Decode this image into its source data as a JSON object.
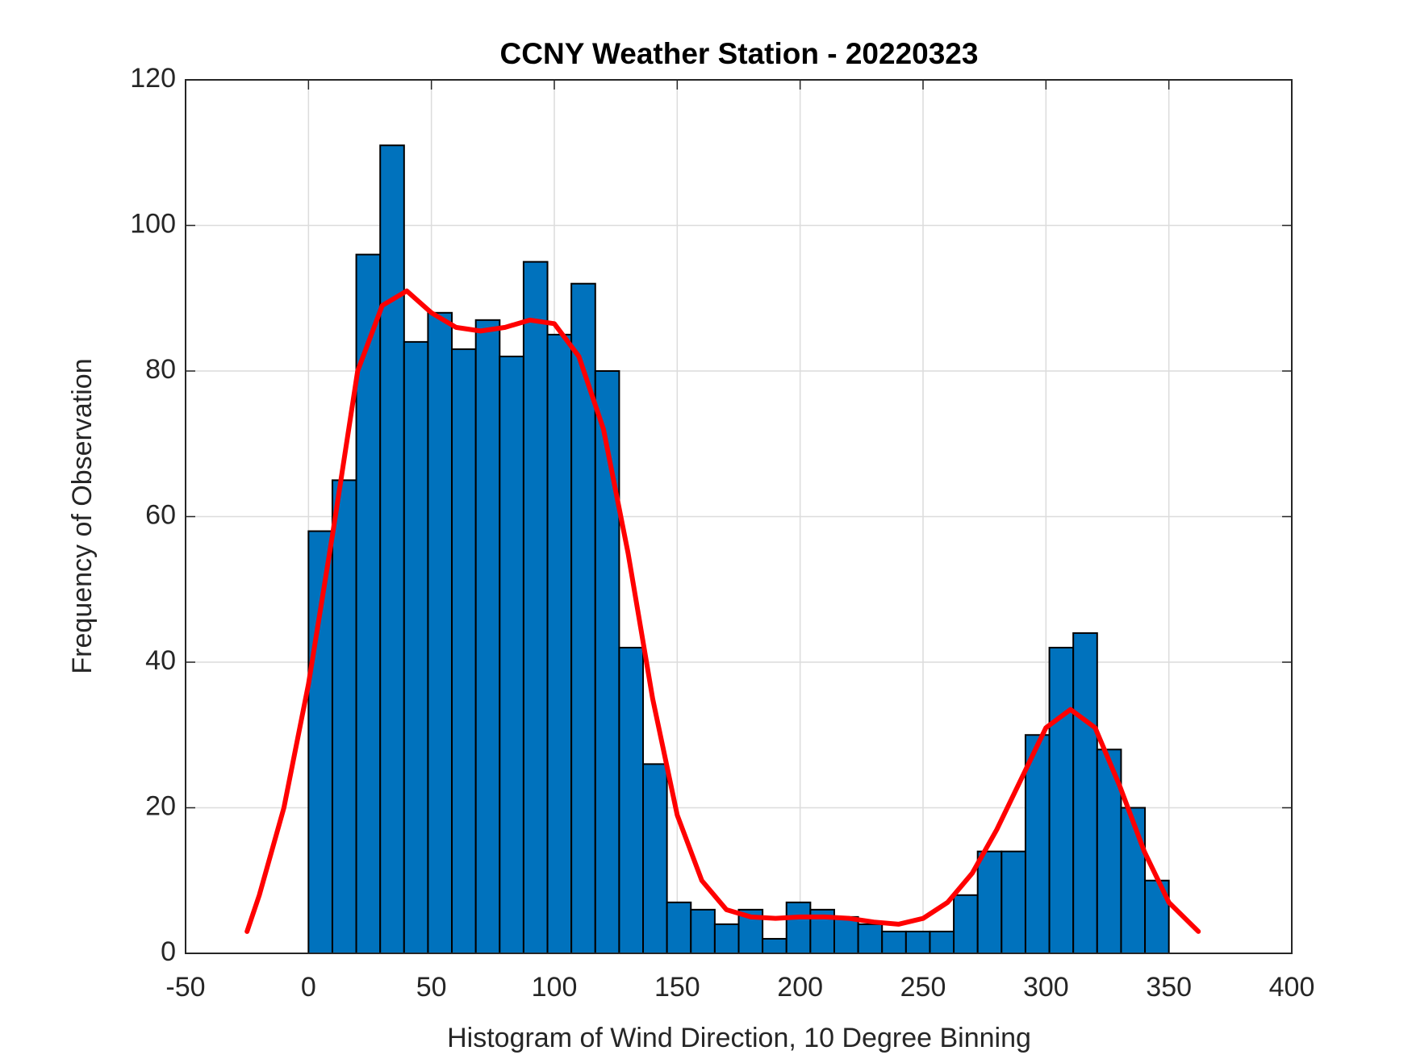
{
  "chart_data": {
    "type": "histogram",
    "title": "CCNY Weather Station - 20220323",
    "xlabel": "Histogram of Wind Direction, 10 Degree Binning",
    "ylabel": "Frequency of Observation",
    "bins": [
      0,
      9.72,
      19.44,
      29.17,
      38.89,
      48.61,
      58.33,
      68.06,
      77.78,
      87.5,
      97.22,
      106.94,
      116.67,
      126.39,
      136.11,
      145.83,
      155.56,
      165.28,
      175,
      184.72,
      194.44,
      204.17,
      213.89,
      223.61,
      233.33,
      243.06,
      252.78,
      262.5,
      272.22,
      281.94,
      291.67,
      301.39,
      311.11,
      320.83,
      330.56,
      340.28,
      350
    ],
    "counts": [
      58,
      65,
      96,
      111,
      84,
      88,
      83,
      87,
      82,
      95,
      85,
      92,
      80,
      42,
      26,
      7,
      6,
      4,
      6,
      2,
      7,
      6,
      5,
      4,
      3,
      3,
      3,
      8,
      14,
      14,
      30,
      42,
      44,
      28,
      20,
      10
    ],
    "color": "#0072bd",
    "fit": {
      "color": "#ff0000",
      "x": [
        -25,
        -20,
        -10,
        0,
        10,
        20,
        30,
        40,
        50,
        60,
        70,
        80,
        90,
        100,
        110,
        120,
        130,
        140,
        150,
        160,
        170,
        180,
        190,
        200,
        210,
        220,
        230,
        240,
        250,
        260,
        270,
        280,
        290,
        300,
        310,
        320,
        330,
        340,
        350,
        362
      ],
      "values": [
        3,
        8,
        20,
        37,
        58,
        80,
        89,
        91,
        88,
        86,
        85.5,
        86,
        87,
        86.5,
        82,
        72,
        55,
        35,
        19,
        10,
        6,
        5,
        4.8,
        5,
        5,
        4.8,
        4.3,
        4,
        4.8,
        7,
        11,
        17,
        24,
        31,
        33.5,
        31,
        23,
        14,
        7,
        3
      ]
    },
    "xlim": [
      -50,
      400
    ],
    "xticks": [
      -50,
      0,
      50,
      100,
      150,
      200,
      250,
      300,
      350,
      400
    ],
    "ylim": [
      0,
      120
    ],
    "yticks": [
      0,
      20,
      40,
      60,
      80,
      100,
      120
    ],
    "grid": true
  }
}
